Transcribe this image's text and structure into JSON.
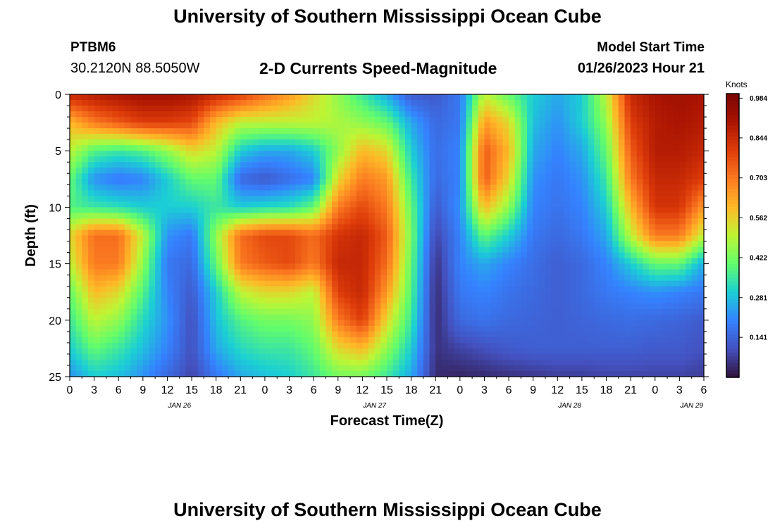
{
  "header": {
    "title": "University of Southern Mississippi Ocean Cube",
    "station_id": "PTBM6",
    "coordinates": "30.2120N  88.5050W",
    "subtitle": "2-D Currents Speed-Magnitude",
    "model_start_label": "Model Start Time",
    "model_start_value": "01/26/2023 Hour 21"
  },
  "footer": {
    "title": "University of Southern Mississippi Ocean Cube"
  },
  "chart_data": {
    "type": "heatmap",
    "title": "2-D Currents Speed-Magnitude",
    "xlabel": "Forecast Time(Z)",
    "ylabel": "Depth (ft)",
    "colorbar_label": "Knots",
    "x_start": "01/26/2023 00Z",
    "x_step_hours": 3,
    "x_tick_labels": [
      "0",
      "3",
      "6",
      "9",
      "12",
      "15",
      "18",
      "21",
      "0",
      "3",
      "6",
      "9",
      "12",
      "15",
      "18",
      "21",
      "0",
      "3",
      "6",
      "9",
      "12",
      "15",
      "18",
      "21",
      "0",
      "3",
      "6"
    ],
    "date_labels": [
      {
        "label": "JAN 26",
        "tick_index": 4.5
      },
      {
        "label": "JAN 27",
        "tick_index": 12.5
      },
      {
        "label": "JAN 28",
        "tick_index": 20.5
      },
      {
        "label": "JAN 29",
        "tick_index": 25.5
      }
    ],
    "y_ticks": [
      0,
      5,
      10,
      15,
      20,
      25
    ],
    "ylim": [
      0,
      25
    ],
    "y_inverted": true,
    "colorbar_ticks": [
      0.984,
      0.844,
      0.703,
      0.562,
      0.422,
      0.281,
      0.141
    ],
    "colorbar_range": [
      0.0,
      1.0
    ],
    "colormap": "turbo",
    "columns_times": [
      "26/00Z",
      "26/03Z",
      "26/06Z",
      "26/09Z",
      "26/12Z",
      "26/15Z",
      "26/18Z",
      "26/21Z",
      "27/00Z",
      "27/03Z",
      "27/06Z",
      "27/09Z",
      "27/12Z",
      "27/15Z",
      "27/18Z",
      "27/21Z",
      "28/00Z",
      "28/03Z",
      "28/06Z",
      "28/09Z",
      "28/12Z",
      "28/15Z",
      "28/18Z",
      "28/21Z",
      "29/00Z",
      "29/03Z",
      "29/06Z"
    ],
    "depth_rows_ft": [
      0,
      2.5,
      5,
      7.5,
      10,
      12.5,
      15,
      17.5,
      20,
      22.5,
      25
    ],
    "speed_knots_by_depth": [
      [
        0.85,
        0.88,
        0.9,
        0.92,
        0.92,
        0.9,
        0.85,
        0.8,
        0.72,
        0.65,
        0.55,
        0.45,
        0.35,
        0.25,
        0.12,
        0.12,
        0.18,
        0.5,
        0.4,
        0.3,
        0.25,
        0.3,
        0.5,
        0.85,
        0.9,
        0.92,
        0.9
      ],
      [
        0.6,
        0.7,
        0.75,
        0.8,
        0.8,
        0.78,
        0.6,
        0.5,
        0.5,
        0.5,
        0.5,
        0.48,
        0.45,
        0.4,
        0.25,
        0.15,
        0.18,
        0.65,
        0.55,
        0.28,
        0.22,
        0.3,
        0.45,
        0.8,
        0.88,
        0.9,
        0.88
      ],
      [
        0.5,
        0.38,
        0.35,
        0.38,
        0.45,
        0.55,
        0.5,
        0.3,
        0.25,
        0.25,
        0.3,
        0.45,
        0.6,
        0.55,
        0.3,
        0.16,
        0.2,
        0.75,
        0.6,
        0.25,
        0.2,
        0.25,
        0.4,
        0.75,
        0.88,
        0.88,
        0.85
      ],
      [
        0.4,
        0.22,
        0.18,
        0.2,
        0.3,
        0.4,
        0.4,
        0.15,
        0.12,
        0.16,
        0.2,
        0.55,
        0.7,
        0.65,
        0.35,
        0.15,
        0.2,
        0.75,
        0.55,
        0.22,
        0.18,
        0.22,
        0.35,
        0.7,
        0.85,
        0.85,
        0.8
      ],
      [
        0.38,
        0.35,
        0.33,
        0.3,
        0.3,
        0.3,
        0.35,
        0.3,
        0.32,
        0.33,
        0.4,
        0.7,
        0.78,
        0.7,
        0.4,
        0.12,
        0.22,
        0.6,
        0.45,
        0.2,
        0.17,
        0.2,
        0.3,
        0.6,
        0.82,
        0.82,
        0.65
      ],
      [
        0.55,
        0.72,
        0.72,
        0.5,
        0.22,
        0.18,
        0.45,
        0.72,
        0.78,
        0.78,
        0.72,
        0.82,
        0.85,
        0.75,
        0.42,
        0.08,
        0.2,
        0.4,
        0.3,
        0.18,
        0.15,
        0.18,
        0.25,
        0.5,
        0.7,
        0.7,
        0.5
      ],
      [
        0.5,
        0.7,
        0.7,
        0.45,
        0.18,
        0.15,
        0.4,
        0.7,
        0.75,
        0.78,
        0.7,
        0.85,
        0.85,
        0.72,
        0.4,
        0.05,
        0.2,
        0.25,
        0.2,
        0.16,
        0.13,
        0.15,
        0.2,
        0.3,
        0.4,
        0.4,
        0.25
      ],
      [
        0.4,
        0.6,
        0.55,
        0.38,
        0.2,
        0.12,
        0.3,
        0.5,
        0.55,
        0.55,
        0.5,
        0.8,
        0.85,
        0.65,
        0.38,
        0.04,
        0.18,
        0.2,
        0.17,
        0.15,
        0.13,
        0.15,
        0.18,
        0.2,
        0.22,
        0.2,
        0.18
      ],
      [
        0.35,
        0.5,
        0.45,
        0.32,
        0.22,
        0.1,
        0.28,
        0.38,
        0.42,
        0.42,
        0.45,
        0.7,
        0.8,
        0.55,
        0.35,
        0.04,
        0.15,
        0.17,
        0.15,
        0.14,
        0.13,
        0.14,
        0.15,
        0.16,
        0.15,
        0.14,
        0.12
      ],
      [
        0.3,
        0.4,
        0.35,
        0.28,
        0.2,
        0.1,
        0.25,
        0.32,
        0.35,
        0.35,
        0.4,
        0.55,
        0.6,
        0.45,
        0.3,
        0.05,
        0.08,
        0.1,
        0.12,
        0.13,
        0.13,
        0.13,
        0.13,
        0.13,
        0.12,
        0.12,
        0.1
      ],
      [
        0.22,
        0.3,
        0.28,
        0.22,
        0.15,
        0.08,
        0.18,
        0.25,
        0.28,
        0.3,
        0.35,
        0.42,
        0.42,
        0.35,
        0.25,
        0.04,
        0.03,
        0.04,
        0.05,
        0.06,
        0.07,
        0.07,
        0.08,
        0.08,
        0.08,
        0.08,
        0.07
      ]
    ]
  }
}
